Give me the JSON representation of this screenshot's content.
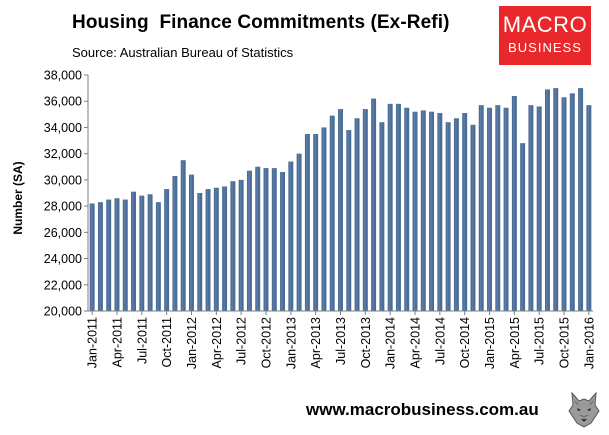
{
  "header": {
    "title": "Housing  Finance Commitments (Ex-Refi)",
    "subtitle": "Source: Australian Bureau of Statistics"
  },
  "logo": {
    "line1": "MACRO",
    "line2": "BUSINESS",
    "color": "#e8282b"
  },
  "footer": {
    "website": "www.macrobusiness.com.au"
  },
  "colors": {
    "bar": "#4a6d97",
    "bar_highlight": "#6f8db5",
    "axis": "#7f7f7f"
  },
  "chart_data": {
    "type": "bar",
    "ylabel": "Number (SA)",
    "ylim": [
      20000,
      38000
    ],
    "yticks": [
      20000,
      22000,
      24000,
      26000,
      28000,
      30000,
      32000,
      34000,
      36000,
      38000
    ],
    "ytick_labels": [
      "20,000",
      "22,000",
      "24,000",
      "26,000",
      "28,000",
      "30,000",
      "32,000",
      "34,000",
      "36,000",
      "38,000"
    ],
    "xtick_labels": [
      "Jan-2011",
      "Apr-2011",
      "Jul-2011",
      "Oct-2011",
      "Jan-2012",
      "Apr-2012",
      "Jul-2012",
      "Oct-2012",
      "Jan-2013",
      "Apr-2013",
      "Jul-2013",
      "Oct-2013",
      "Jan-2014",
      "Apr-2014",
      "Jul-2014",
      "Oct-2014",
      "Jan-2015",
      "Apr-2015",
      "Jul-2015",
      "Oct-2015",
      "Jan-2016"
    ],
    "grid": false,
    "categories": [
      "Jan-2011",
      "Feb-2011",
      "Mar-2011",
      "Apr-2011",
      "May-2011",
      "Jun-2011",
      "Jul-2011",
      "Aug-2011",
      "Sep-2011",
      "Oct-2011",
      "Nov-2011",
      "Dec-2011",
      "Jan-2012",
      "Feb-2012",
      "Mar-2012",
      "Apr-2012",
      "May-2012",
      "Jun-2012",
      "Jul-2012",
      "Aug-2012",
      "Sep-2012",
      "Oct-2012",
      "Nov-2012",
      "Dec-2012",
      "Jan-2013",
      "Feb-2013",
      "Mar-2013",
      "Apr-2013",
      "May-2013",
      "Jun-2013",
      "Jul-2013",
      "Aug-2013",
      "Sep-2013",
      "Oct-2013",
      "Nov-2013",
      "Dec-2013",
      "Jan-2014",
      "Feb-2014",
      "Mar-2014",
      "Apr-2014",
      "May-2014",
      "Jun-2014",
      "Jul-2014",
      "Aug-2014",
      "Sep-2014",
      "Oct-2014",
      "Nov-2014",
      "Dec-2014",
      "Jan-2015",
      "Feb-2015",
      "Mar-2015",
      "Apr-2015",
      "May-2015",
      "Jun-2015",
      "Jul-2015",
      "Aug-2015",
      "Sep-2015",
      "Oct-2015",
      "Nov-2015",
      "Dec-2015",
      "Jan-2016"
    ],
    "values": [
      28200,
      28300,
      28500,
      28600,
      28500,
      29100,
      28800,
      28900,
      28300,
      29300,
      30300,
      31500,
      30400,
      29000,
      29300,
      29400,
      29500,
      29900,
      30000,
      30700,
      31000,
      30900,
      30900,
      30600,
      31400,
      32000,
      33500,
      33500,
      34000,
      34900,
      35400,
      33800,
      34700,
      35400,
      36200,
      34400,
      35800,
      35800,
      35500,
      35200,
      35300,
      35200,
      35100,
      34400,
      34700,
      35100,
      34200,
      35700,
      35500,
      35700,
      35500,
      36400,
      32800,
      35700,
      35600,
      36900,
      37000,
      36300,
      36600,
      37000,
      35700
    ]
  }
}
